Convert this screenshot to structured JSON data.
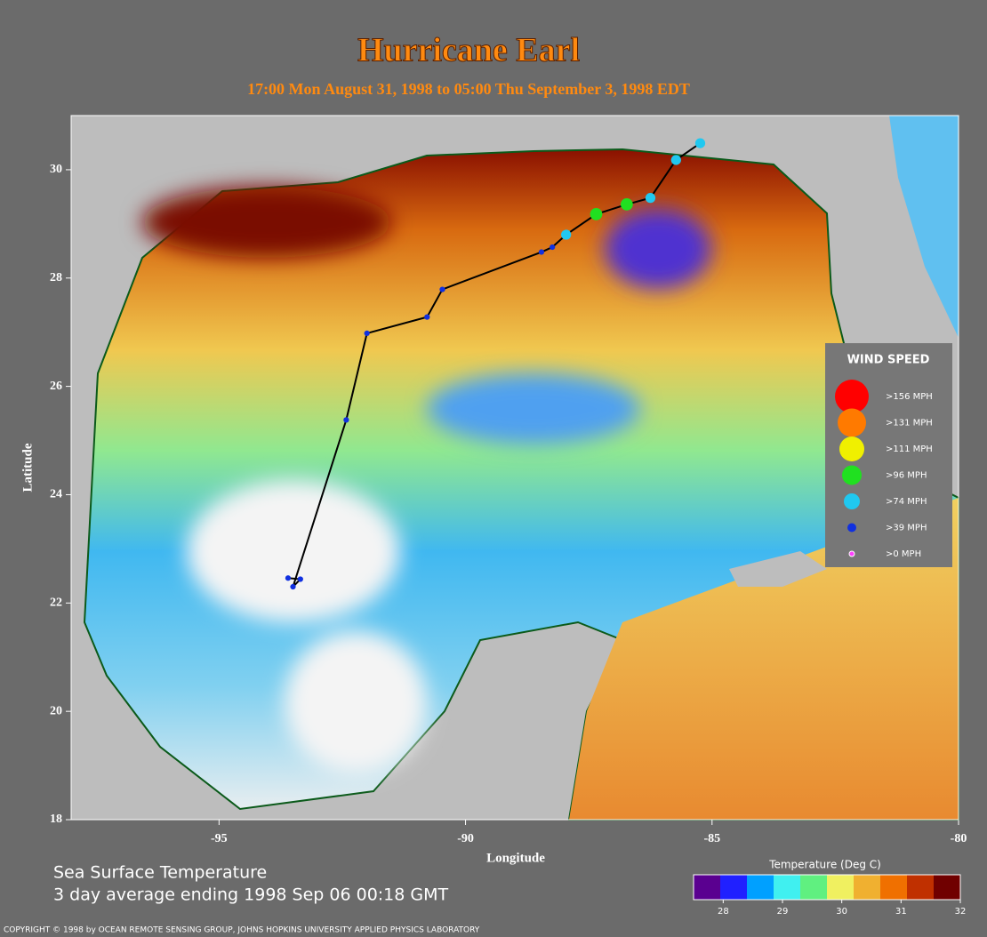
{
  "title": "Hurricane Earl",
  "subtitle": "17:00 Mon August 31, 1998 to 05:00 Thu September  3, 1998  EDT",
  "map": {
    "xlabel": "Longitude",
    "ylabel": "Latitude",
    "xlim": [
      -98,
      -80
    ],
    "ylim": [
      18,
      31
    ],
    "xticks": [
      -95,
      -90,
      -85,
      -80
    ],
    "yticks": [
      18,
      20,
      22,
      24,
      26,
      28,
      30
    ],
    "track": {
      "color": "#000000",
      "points": [
        {
          "lon": -93.6,
          "lat": 22.46,
          "color": "#1030e0"
        },
        {
          "lon": -93.35,
          "lat": 22.44,
          "color": "#1030e0"
        },
        {
          "lon": -93.5,
          "lat": 22.3,
          "color": "#1030e0"
        },
        {
          "lon": -92.42,
          "lat": 25.38,
          "color": "#1030e0"
        },
        {
          "lon": -92.0,
          "lat": 26.98,
          "color": "#1030e0"
        },
        {
          "lon": -90.78,
          "lat": 27.28,
          "color": "#1030e0"
        },
        {
          "lon": -90.47,
          "lat": 27.79,
          "color": "#1030e0"
        },
        {
          "lon": -88.46,
          "lat": 28.48,
          "color": "#1030e0"
        },
        {
          "lon": -88.24,
          "lat": 28.57,
          "color": "#1030e0"
        },
        {
          "lon": -87.96,
          "lat": 28.8,
          "color": "#20c8f0"
        },
        {
          "lon": -87.35,
          "lat": 29.18,
          "color": "#20e020"
        },
        {
          "lon": -86.73,
          "lat": 29.36,
          "color": "#20e020"
        },
        {
          "lon": -86.25,
          "lat": 29.48,
          "color": "#20c8f0"
        },
        {
          "lon": -85.73,
          "lat": 30.18,
          "color": "#20c8f0"
        },
        {
          "lon": -85.24,
          "lat": 30.49,
          "color": "#20c8f0"
        }
      ]
    }
  },
  "legend": {
    "title": "WIND SPEED",
    "items": [
      {
        "label": ">156 MPH",
        "color": "#ff0000"
      },
      {
        "label": ">131 MPH",
        "color": "#ff7a00"
      },
      {
        "label": ">111 MPH",
        "color": "#f0f000"
      },
      {
        "label": ">96 MPH",
        "color": "#20e020"
      },
      {
        "label": ">74 MPH",
        "color": "#20c8f0"
      },
      {
        "label": ">39 MPH",
        "color": "#1030e0"
      },
      {
        "label": ">0 MPH",
        "color": "#ff40ff"
      }
    ]
  },
  "caption": [
    "Sea Surface Temperature",
    "3 day average ending 1998 Sep 06 00:18 GMT"
  ],
  "colorbar": {
    "label": "Temperature (Deg C)",
    "lim": [
      27.5,
      32
    ],
    "ticks": [
      28,
      29,
      30,
      31,
      32
    ],
    "colors": [
      "#5a0090",
      "#2020ff",
      "#00a0ff",
      "#40f0f0",
      "#60f080",
      "#f0f060",
      "#f0b030",
      "#f07000",
      "#c03000",
      "#700000"
    ]
  },
  "copyright": "COPYRIGHT © 1998 by OCEAN REMOTE SENSING GROUP, JOHNS HOPKINS UNIVERSITY APPLIED PHYSICS LABORATORY"
}
